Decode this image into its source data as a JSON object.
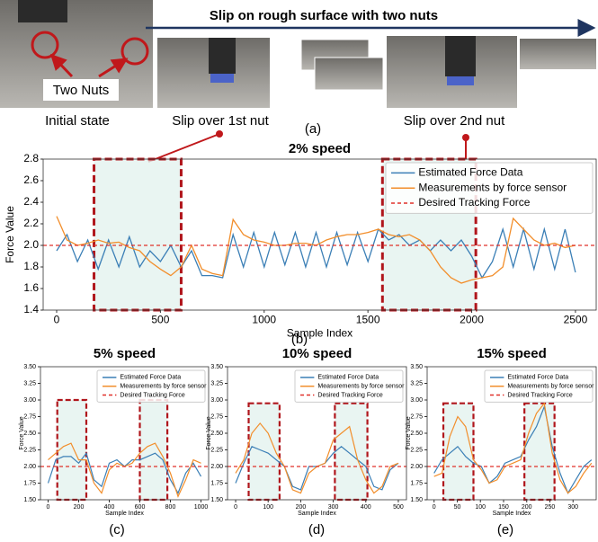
{
  "figure": {
    "banner": "Slip on rough surface with two nuts",
    "two_nuts": "Two Nuts",
    "captions": [
      "Initial state",
      "Slip over 1st nut",
      "Slip over 2nd nut"
    ],
    "panel_labels": [
      "(a)",
      "(b)",
      "(c)",
      "(d)",
      "(e)"
    ]
  },
  "chart_data": [
    {
      "type": "line",
      "title": "2% speed",
      "x_label": "Sample Index",
      "y_label": "Force Value",
      "xlim": [
        -65,
        2600
      ],
      "xticks": [
        0,
        500,
        1000,
        1500,
        2000,
        2500
      ],
      "ylim": [
        1.4,
        2.8
      ],
      "yticks": [
        1.4,
        1.6,
        1.8,
        {
          "value": 2,
          "label": "2.0"
        },
        2.2,
        2.4,
        2.6,
        2.8
      ],
      "legend": "upper right",
      "highlights": [
        {
          "x": [
            180,
            600
          ],
          "y": [
            1.4,
            2.8
          ]
        },
        {
          "x": [
            1570,
            2020
          ],
          "y": [
            1.4,
            2.8
          ]
        }
      ],
      "series": [
        {
          "name": "Estimated Force Data",
          "color": "#3b7fb6",
          "x": [
            0,
            50,
            100,
            150,
            200,
            250,
            300,
            350,
            400,
            450,
            500,
            550,
            600,
            650,
            700,
            750,
            800,
            850,
            900,
            950,
            1000,
            1050,
            1100,
            1150,
            1200,
            1250,
            1300,
            1350,
            1400,
            1450,
            1500,
            1550,
            1600,
            1650,
            1700,
            1750,
            1800,
            1850,
            1900,
            1950,
            2000,
            2050,
            2100,
            2150,
            2200,
            2250,
            2300,
            2350,
            2400,
            2450,
            2500
          ],
          "values": [
            1.95,
            2.1,
            1.85,
            2.05,
            1.78,
            2.05,
            1.8,
            2.08,
            1.8,
            1.95,
            1.85,
            2.0,
            1.8,
            1.95,
            1.72,
            1.72,
            1.7,
            2.1,
            1.8,
            2.12,
            1.8,
            2.12,
            1.82,
            2.12,
            1.8,
            2.12,
            1.8,
            2.12,
            1.82,
            2.12,
            1.85,
            2.15,
            2.05,
            2.1,
            2.0,
            2.05,
            1.95,
            2.05,
            1.95,
            2.05,
            1.9,
            1.7,
            1.85,
            2.15,
            1.8,
            2.15,
            1.78,
            2.15,
            1.78,
            2.15,
            1.75
          ]
        },
        {
          "name": "Measurements by force sensor",
          "color": "#f28e2b",
          "x": [
            0,
            50,
            100,
            150,
            200,
            250,
            300,
            350,
            400,
            450,
            500,
            550,
            600,
            650,
            700,
            750,
            800,
            850,
            900,
            950,
            1000,
            1050,
            1100,
            1150,
            1200,
            1250,
            1300,
            1350,
            1400,
            1450,
            1500,
            1550,
            1600,
            1650,
            1700,
            1750,
            1800,
            1850,
            1900,
            1950,
            2000,
            2050,
            2100,
            2150,
            2200,
            2250,
            2300,
            2350,
            2400,
            2450,
            2500
          ],
          "values": [
            2.27,
            2.05,
            2.0,
            2.02,
            2.05,
            2.02,
            2.03,
            1.98,
            1.95,
            1.85,
            1.78,
            1.72,
            1.8,
            2.0,
            1.78,
            1.74,
            1.72,
            2.24,
            2.1,
            2.05,
            2.03,
            2.0,
            2.0,
            2.02,
            2.02,
            2.0,
            2.05,
            2.08,
            2.1,
            2.1,
            2.12,
            2.15,
            2.1,
            2.08,
            2.1,
            2.05,
            1.95,
            1.8,
            1.7,
            1.65,
            1.68,
            1.7,
            1.72,
            1.8,
            2.25,
            2.15,
            2.05,
            2.0,
            2.02,
            1.98,
            2.0
          ]
        },
        {
          "name": "Desired Tracking Force",
          "color": "#e0302a",
          "linestyle": "dashed",
          "x": [
            -65,
            2600
          ],
          "values": [
            2,
            2
          ]
        }
      ]
    },
    {
      "type": "line",
      "title": "5% speed",
      "x_label": "Sample Index",
      "y_label": "Force Value",
      "xlim": [
        -50,
        1050
      ],
      "xticks": [
        0,
        200,
        400,
        600,
        800,
        1000
      ],
      "ylim": [
        1.5,
        3.5
      ],
      "yticks": [
        {
          "value": 1.5,
          "label": "1.50"
        },
        1.75,
        {
          "value": 2,
          "label": "2.00"
        },
        2.25,
        {
          "value": 2.5,
          "label": "2.50"
        },
        2.75,
        {
          "value": 3,
          "label": "3.00"
        },
        3.25,
        {
          "value": 3.5,
          "label": "3.50"
        }
      ],
      "legend": "upper right",
      "highlights": [
        {
          "x": [
            60,
            250
          ],
          "y": [
            1.5,
            3.0
          ]
        },
        {
          "x": [
            600,
            780
          ],
          "y": [
            1.5,
            3.0
          ]
        }
      ],
      "series": [
        {
          "name": "Estimated Force Data",
          "color": "#3b7fb6",
          "x": [
            0,
            50,
            100,
            150,
            200,
            250,
            300,
            350,
            400,
            450,
            500,
            550,
            600,
            650,
            700,
            750,
            800,
            850,
            900,
            950,
            1000
          ],
          "values": [
            1.75,
            2.1,
            2.15,
            2.15,
            2.05,
            2.2,
            1.8,
            1.7,
            2.05,
            2.1,
            2.0,
            2.1,
            2.1,
            2.15,
            2.2,
            2.1,
            1.8,
            1.6,
            1.9,
            2.05,
            1.85
          ]
        },
        {
          "name": "Measurements by force sensor",
          "color": "#f28e2b",
          "x": [
            0,
            50,
            100,
            150,
            200,
            250,
            300,
            350,
            400,
            450,
            500,
            550,
            600,
            650,
            700,
            750,
            800,
            850,
            900,
            950,
            1000
          ],
          "values": [
            2.1,
            2.2,
            2.3,
            2.35,
            2.1,
            2.1,
            1.75,
            1.6,
            1.95,
            2.05,
            2.0,
            2.05,
            2.2,
            2.3,
            2.35,
            2.15,
            1.9,
            1.55,
            1.8,
            2.1,
            2.05
          ]
        },
        {
          "name": "Desired Tracking Force",
          "color": "#e0302a",
          "linestyle": "dashed",
          "x": [
            -50,
            1050
          ],
          "values": [
            2,
            2
          ]
        }
      ]
    },
    {
      "type": "line",
      "title": "10% speed",
      "x_label": "Sample Index",
      "y_label": "Force Value",
      "xlim": [
        -25,
        525
      ],
      "xticks": [
        0,
        100,
        200,
        300,
        400,
        500
      ],
      "ylim": [
        1.5,
        3.5
      ],
      "yticks": [
        {
          "value": 1.5,
          "label": "1.50"
        },
        1.75,
        {
          "value": 2,
          "label": "2.00"
        },
        2.25,
        {
          "value": 2.5,
          "label": "2.50"
        },
        2.75,
        {
          "value": 3,
          "label": "3.00"
        },
        3.25,
        {
          "value": 3.5,
          "label": "3.50"
        }
      ],
      "legend": "upper right",
      "highlights": [
        {
          "x": [
            40,
            135
          ],
          "y": [
            1.5,
            2.95
          ]
        },
        {
          "x": [
            305,
            405
          ],
          "y": [
            1.5,
            2.95
          ]
        }
      ],
      "series": [
        {
          "name": "Estimated Force Data",
          "color": "#3b7fb6",
          "x": [
            0,
            25,
            50,
            75,
            100,
            125,
            150,
            175,
            200,
            225,
            250,
            275,
            300,
            325,
            350,
            375,
            400,
            425,
            450,
            475,
            500
          ],
          "values": [
            1.75,
            2.05,
            2.3,
            2.25,
            2.2,
            2.1,
            2.0,
            1.7,
            1.65,
            2.0,
            2.0,
            2.05,
            2.2,
            2.3,
            2.2,
            2.1,
            2.0,
            1.7,
            1.65,
            1.95,
            2.05
          ]
        },
        {
          "name": "Measurements by force sensor",
          "color": "#f28e2b",
          "x": [
            0,
            25,
            50,
            75,
            100,
            125,
            150,
            175,
            200,
            225,
            250,
            275,
            300,
            325,
            350,
            375,
            400,
            425,
            450,
            475,
            500
          ],
          "values": [
            1.9,
            2.1,
            2.5,
            2.65,
            2.5,
            2.2,
            2.0,
            1.65,
            1.6,
            1.9,
            2.0,
            2.05,
            2.4,
            2.5,
            2.6,
            2.1,
            1.8,
            1.6,
            1.7,
            2.0,
            2.05
          ]
        },
        {
          "name": "Desired Tracking Force",
          "color": "#e0302a",
          "linestyle": "dashed",
          "x": [
            -25,
            525
          ],
          "values": [
            2,
            2
          ]
        }
      ]
    },
    {
      "type": "line",
      "title": "15% speed",
      "x_label": "Sample Index",
      "y_label": "Force Value",
      "xlim": [
        -15,
        350
      ],
      "xticks": [
        0,
        50,
        100,
        150,
        200,
        250,
        300
      ],
      "ylim": [
        1.5,
        3.5
      ],
      "yticks": [
        {
          "value": 1.5,
          "label": "1.50"
        },
        1.75,
        {
          "value": 2,
          "label": "2.00"
        },
        2.25,
        {
          "value": 2.5,
          "label": "2.50"
        },
        2.75,
        {
          "value": 3,
          "label": "3.00"
        },
        3.25,
        {
          "value": 3.5,
          "label": "3.50"
        }
      ],
      "legend": "upper right",
      "highlights": [
        {
          "x": [
            20,
            85
          ],
          "y": [
            1.5,
            2.95
          ]
        },
        {
          "x": [
            195,
            260
          ],
          "y": [
            1.5,
            2.95
          ]
        }
      ],
      "series": [
        {
          "name": "Estimated Force Data",
          "color": "#3b7fb6",
          "x": [
            0,
            17,
            34,
            51,
            68,
            85,
            102,
            119,
            136,
            153,
            170,
            187,
            204,
            221,
            238,
            255,
            272,
            289,
            306,
            323,
            340
          ],
          "values": [
            1.9,
            2.1,
            2.2,
            2.3,
            2.15,
            2.05,
            2.0,
            1.75,
            1.85,
            2.05,
            2.1,
            2.15,
            2.4,
            2.6,
            2.9,
            2.3,
            1.9,
            1.6,
            1.8,
            2.0,
            2.1
          ]
        },
        {
          "name": "Measurements by force sensor",
          "color": "#f28e2b",
          "x": [
            0,
            17,
            34,
            51,
            68,
            85,
            102,
            119,
            136,
            153,
            170,
            187,
            204,
            221,
            238,
            255,
            272,
            289,
            306,
            323,
            340
          ],
          "values": [
            1.85,
            1.9,
            2.45,
            2.75,
            2.6,
            2.1,
            1.95,
            1.75,
            1.8,
            2.0,
            2.05,
            2.1,
            2.5,
            2.8,
            2.95,
            2.2,
            1.8,
            1.6,
            1.7,
            1.9,
            2.05
          ]
        },
        {
          "name": "Desired Tracking Force",
          "color": "#e0302a",
          "linestyle": "dashed",
          "x": [
            -15,
            350
          ],
          "values": [
            2,
            2
          ]
        }
      ]
    }
  ]
}
